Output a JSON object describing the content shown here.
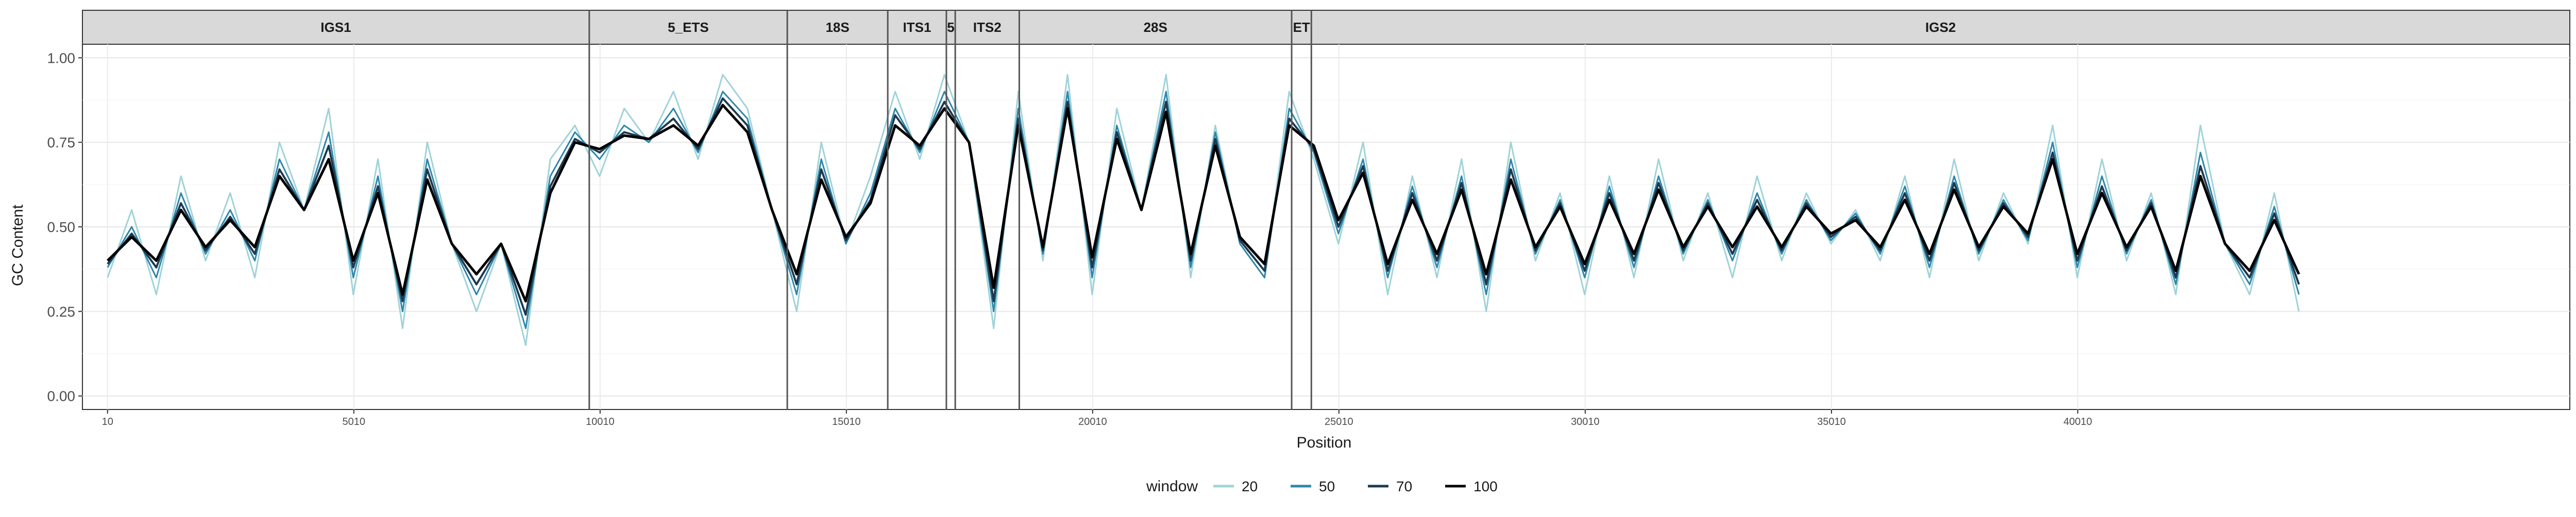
{
  "chart_data": {
    "type": "line",
    "title": "",
    "xlabel": "Position",
    "ylabel": "GC Content",
    "xlim": [
      -500,
      50000
    ],
    "ylim": [
      -0.04,
      1.04
    ],
    "grid": true,
    "legend_position": "bottom",
    "x_ticks": [
      {
        "value": 10,
        "label": "10"
      },
      {
        "value": 5010,
        "label": "5010"
      },
      {
        "value": 10010,
        "label": "10010"
      },
      {
        "value": 15010,
        "label": "15010"
      },
      {
        "value": 20010,
        "label": "20010"
      },
      {
        "value": 25010,
        "label": "25010"
      },
      {
        "value": 30010,
        "label": "30010"
      },
      {
        "value": 35010,
        "label": "35010"
      },
      {
        "value": 40010,
        "label": "40010"
      }
    ],
    "y_ticks": [
      {
        "value": 0.0,
        "label": "0.00"
      },
      {
        "value": 0.25,
        "label": "0.25"
      },
      {
        "value": 0.5,
        "label": "0.50"
      },
      {
        "value": 0.75,
        "label": "0.75"
      },
      {
        "value": 1.0,
        "label": "1.00"
      }
    ],
    "regions": [
      {
        "label": "IGS1",
        "start": -500,
        "end": 9790
      },
      {
        "label": "5_ETS",
        "start": 9790,
        "end": 13810
      },
      {
        "label": "18S",
        "start": 13810,
        "end": 15850
      },
      {
        "label": "ITS1",
        "start": 15850,
        "end": 17040
      },
      {
        "label": "5",
        "start": 17040,
        "end": 17220
      },
      {
        "label": "ITS2",
        "start": 17220,
        "end": 18520
      },
      {
        "label": "28S",
        "start": 18520,
        "end": 24050
      },
      {
        "label": "ET",
        "start": 24050,
        "end": 24450
      },
      {
        "label": "IGS2",
        "start": 24450,
        "end": 50000
      }
    ],
    "legend": {
      "title": "window",
      "entries": [
        {
          "label": "20",
          "color": "#9fd3d8"
        },
        {
          "label": "50",
          "color": "#2e86ab"
        },
        {
          "label": "70",
          "color": "#1d3a4f"
        },
        {
          "label": "100",
          "color": "#000000"
        }
      ]
    },
    "series": [
      {
        "name": "20",
        "color": "#9fd3d8",
        "x": [
          10,
          500,
          1000,
          1500,
          2000,
          2500,
          3000,
          3500,
          4000,
          4500,
          5000,
          5500,
          6000,
          6500,
          7000,
          7500,
          8000,
          8500,
          9000,
          9500,
          10000,
          10500,
          11000,
          11500,
          12000,
          12500,
          13000,
          13500,
          14000,
          14500,
          15000,
          15500,
          16000,
          16500,
          17000,
          17500,
          18000,
          18500,
          19000,
          19500,
          20000,
          20500,
          21000,
          21500,
          22000,
          22500,
          23000,
          23500,
          24000,
          24500,
          25000,
          25500,
          26000,
          26500,
          27000,
          27500,
          28000,
          28500,
          29000,
          29500,
          30000,
          30500,
          31000,
          31500,
          32000,
          32500,
          33000,
          33500,
          34000,
          34500,
          35000,
          35500,
          36000,
          36500,
          37000,
          37500,
          38000,
          38500,
          39000,
          39500,
          40000,
          40500,
          41000,
          41500,
          42000,
          42500,
          43000,
          43500,
          44000,
          44500
        ],
        "y": [
          0.35,
          0.55,
          0.3,
          0.65,
          0.4,
          0.6,
          0.35,
          0.75,
          0.55,
          0.85,
          0.3,
          0.7,
          0.2,
          0.75,
          0.45,
          0.25,
          0.45,
          0.15,
          0.7,
          0.8,
          0.65,
          0.85,
          0.75,
          0.9,
          0.7,
          0.95,
          0.85,
          0.55,
          0.25,
          0.75,
          0.45,
          0.65,
          0.9,
          0.7,
          0.95,
          0.75,
          0.2,
          0.9,
          0.4,
          0.95,
          0.3,
          0.85,
          0.55,
          0.95,
          0.35,
          0.8,
          0.45,
          0.35,
          0.9,
          0.7,
          0.45,
          0.75,
          0.3,
          0.65,
          0.35,
          0.7,
          0.25,
          0.75,
          0.4,
          0.6,
          0.3,
          0.65,
          0.35,
          0.7,
          0.4,
          0.6,
          0.35,
          0.65,
          0.4,
          0.6,
          0.45,
          0.55,
          0.4,
          0.65,
          0.35,
          0.7,
          0.4,
          0.6,
          0.45,
          0.8,
          0.35,
          0.7,
          0.4,
          0.6,
          0.3,
          0.8,
          0.45,
          0.3,
          0.6,
          0.25
        ]
      },
      {
        "name": "50",
        "color": "#2e86ab",
        "x": [
          10,
          500,
          1000,
          1500,
          2000,
          2500,
          3000,
          3500,
          4000,
          4500,
          5000,
          5500,
          6000,
          6500,
          7000,
          7500,
          8000,
          8500,
          9000,
          9500,
          10000,
          10500,
          11000,
          11500,
          12000,
          12500,
          13000,
          13500,
          14000,
          14500,
          15000,
          15500,
          16000,
          16500,
          17000,
          17500,
          18000,
          18500,
          19000,
          19500,
          20000,
          20500,
          21000,
          21500,
          22000,
          22500,
          23000,
          23500,
          24000,
          24500,
          25000,
          25500,
          26000,
          26500,
          27000,
          27500,
          28000,
          28500,
          29000,
          29500,
          30000,
          30500,
          31000,
          31500,
          32000,
          32500,
          33000,
          33500,
          34000,
          34500,
          35000,
          35500,
          36000,
          36500,
          37000,
          37500,
          38000,
          38500,
          39000,
          39500,
          40000,
          40500,
          41000,
          41500,
          42000,
          42500,
          43000,
          43500,
          44000,
          44500
        ],
        "y": [
          0.38,
          0.5,
          0.35,
          0.6,
          0.42,
          0.55,
          0.4,
          0.7,
          0.55,
          0.78,
          0.35,
          0.65,
          0.25,
          0.7,
          0.45,
          0.3,
          0.45,
          0.2,
          0.65,
          0.78,
          0.7,
          0.8,
          0.75,
          0.85,
          0.72,
          0.9,
          0.82,
          0.55,
          0.3,
          0.7,
          0.45,
          0.6,
          0.85,
          0.72,
          0.9,
          0.75,
          0.25,
          0.85,
          0.42,
          0.9,
          0.35,
          0.8,
          0.55,
          0.9,
          0.38,
          0.78,
          0.45,
          0.35,
          0.85,
          0.72,
          0.48,
          0.7,
          0.35,
          0.62,
          0.38,
          0.65,
          0.3,
          0.7,
          0.42,
          0.58,
          0.35,
          0.62,
          0.38,
          0.65,
          0.42,
          0.58,
          0.4,
          0.6,
          0.42,
          0.58,
          0.46,
          0.54,
          0.42,
          0.62,
          0.38,
          0.65,
          0.42,
          0.58,
          0.46,
          0.75,
          0.38,
          0.65,
          0.42,
          0.58,
          0.33,
          0.72,
          0.45,
          0.33,
          0.56,
          0.3
        ]
      },
      {
        "name": "70",
        "color": "#1d3a4f",
        "x": [
          10,
          500,
          1000,
          1500,
          2000,
          2500,
          3000,
          3500,
          4000,
          4500,
          5000,
          5500,
          6000,
          6500,
          7000,
          7500,
          8000,
          8500,
          9000,
          9500,
          10000,
          10500,
          11000,
          11500,
          12000,
          12500,
          13000,
          13500,
          14000,
          14500,
          15000,
          15500,
          16000,
          16500,
          17000,
          17500,
          18000,
          18500,
          19000,
          19500,
          20000,
          20500,
          21000,
          21500,
          22000,
          22500,
          23000,
          23500,
          24000,
          24500,
          25000,
          25500,
          26000,
          26500,
          27000,
          27500,
          28000,
          28500,
          29000,
          29500,
          30000,
          30500,
          31000,
          31500,
          32000,
          32500,
          33000,
          33500,
          34000,
          34500,
          35000,
          35500,
          36000,
          36500,
          37000,
          37500,
          38000,
          38500,
          39000,
          39500,
          40000,
          40500,
          41000,
          41500,
          42000,
          42500,
          43000,
          43500,
          44000,
          44500
        ],
        "y": [
          0.39,
          0.48,
          0.38,
          0.57,
          0.43,
          0.53,
          0.42,
          0.67,
          0.55,
          0.74,
          0.38,
          0.62,
          0.28,
          0.67,
          0.45,
          0.33,
          0.45,
          0.24,
          0.62,
          0.76,
          0.72,
          0.78,
          0.76,
          0.82,
          0.73,
          0.88,
          0.8,
          0.55,
          0.33,
          0.67,
          0.46,
          0.58,
          0.83,
          0.73,
          0.87,
          0.75,
          0.28,
          0.82,
          0.43,
          0.87,
          0.38,
          0.78,
          0.55,
          0.87,
          0.4,
          0.76,
          0.46,
          0.37,
          0.82,
          0.73,
          0.5,
          0.68,
          0.37,
          0.6,
          0.4,
          0.63,
          0.33,
          0.67,
          0.43,
          0.57,
          0.37,
          0.6,
          0.4,
          0.63,
          0.43,
          0.57,
          0.42,
          0.58,
          0.43,
          0.57,
          0.47,
          0.53,
          0.43,
          0.6,
          0.4,
          0.63,
          0.43,
          0.57,
          0.47,
          0.72,
          0.4,
          0.62,
          0.43,
          0.57,
          0.35,
          0.68,
          0.45,
          0.35,
          0.54,
          0.33
        ]
      },
      {
        "name": "100",
        "color": "#000000",
        "x": [
          10,
          500,
          1000,
          1500,
          2000,
          2500,
          3000,
          3500,
          4000,
          4500,
          5000,
          5500,
          6000,
          6500,
          7000,
          7500,
          8000,
          8500,
          9000,
          9500,
          10000,
          10500,
          11000,
          11500,
          12000,
          12500,
          13000,
          13500,
          14000,
          14500,
          15000,
          15500,
          16000,
          16500,
          17000,
          17500,
          18000,
          18500,
          19000,
          19500,
          20000,
          20500,
          21000,
          21500,
          22000,
          22500,
          23000,
          23500,
          24000,
          24500,
          25000,
          25500,
          26000,
          26500,
          27000,
          27500,
          28000,
          28500,
          29000,
          29500,
          30000,
          30500,
          31000,
          31500,
          32000,
          32500,
          33000,
          33500,
          34000,
          34500,
          35000,
          35500,
          36000,
          36500,
          37000,
          37500,
          38000,
          38500,
          39000,
          39500,
          40000,
          40500,
          41000,
          41500,
          42000,
          42500,
          43000,
          43500,
          44000,
          44500
        ],
        "y": [
          0.4,
          0.47,
          0.4,
          0.55,
          0.44,
          0.52,
          0.44,
          0.65,
          0.55,
          0.7,
          0.4,
          0.6,
          0.3,
          0.64,
          0.45,
          0.36,
          0.45,
          0.28,
          0.6,
          0.75,
          0.73,
          0.77,
          0.76,
          0.8,
          0.74,
          0.86,
          0.78,
          0.55,
          0.36,
          0.64,
          0.47,
          0.57,
          0.8,
          0.74,
          0.85,
          0.75,
          0.32,
          0.8,
          0.44,
          0.85,
          0.41,
          0.76,
          0.55,
          0.84,
          0.42,
          0.74,
          0.47,
          0.39,
          0.8,
          0.74,
          0.52,
          0.66,
          0.39,
          0.58,
          0.42,
          0.61,
          0.36,
          0.64,
          0.44,
          0.56,
          0.39,
          0.58,
          0.42,
          0.61,
          0.44,
          0.56,
          0.44,
          0.56,
          0.44,
          0.56,
          0.48,
          0.52,
          0.44,
          0.58,
          0.42,
          0.61,
          0.44,
          0.56,
          0.48,
          0.7,
          0.42,
          0.6,
          0.44,
          0.56,
          0.37,
          0.65,
          0.45,
          0.37,
          0.52,
          0.36
        ]
      }
    ]
  }
}
